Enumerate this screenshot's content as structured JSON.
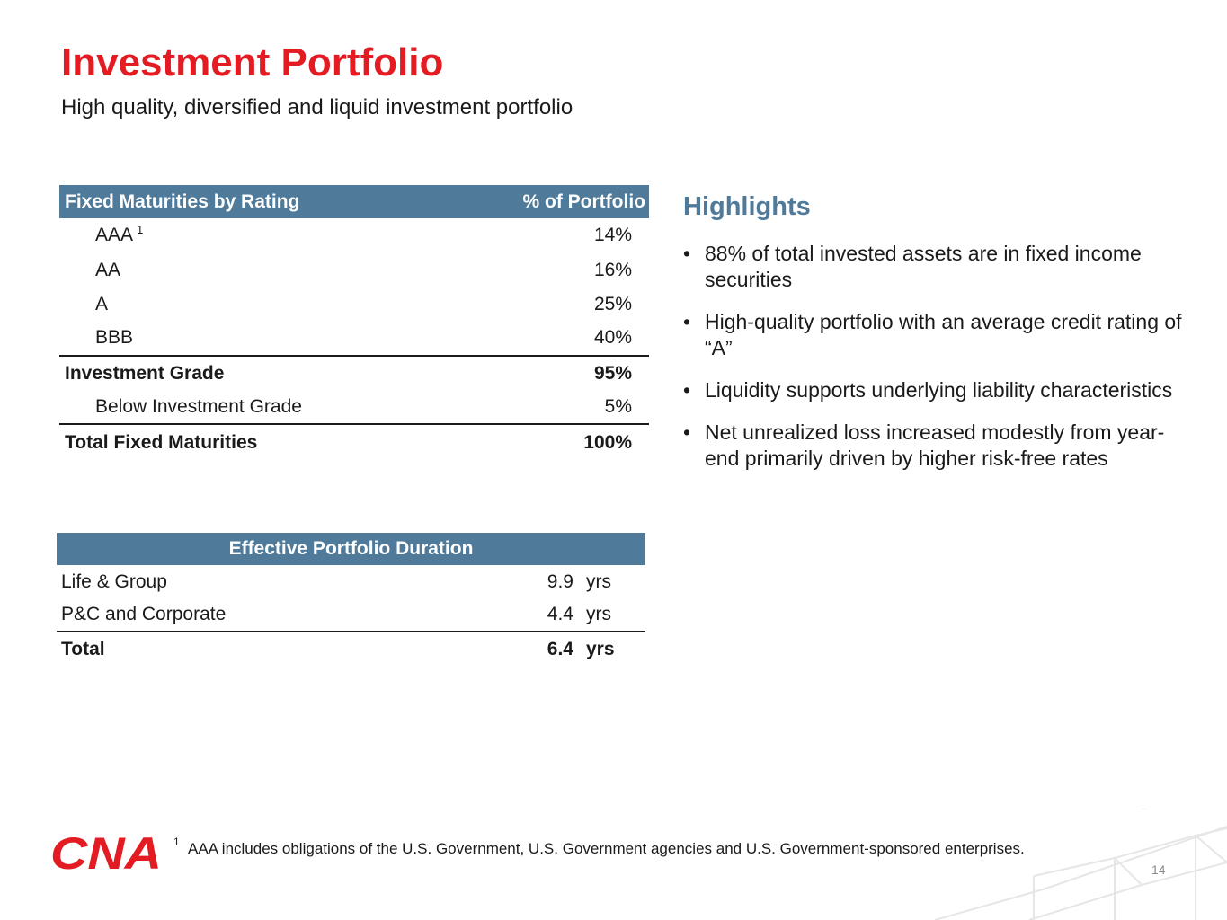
{
  "header": {
    "title": "Investment Portfolio",
    "subtitle": "High quality, diversified and liquid investment portfolio"
  },
  "fixed_maturities": {
    "col_label": "Fixed Maturities by Rating",
    "col_value": "% of Portfolio",
    "rows": [
      {
        "label": "AAA",
        "sup": "1",
        "value": "14%"
      },
      {
        "label": "AA",
        "value": "16%"
      },
      {
        "label": "A",
        "value": "25%"
      },
      {
        "label": "BBB",
        "value": "40%"
      },
      {
        "label": "Investment Grade",
        "value": "95%"
      },
      {
        "label": "Below Investment Grade",
        "value": "5%"
      },
      {
        "label": "Total Fixed Maturities",
        "value": "100%"
      }
    ]
  },
  "duration": {
    "header": "Effective Portfolio Duration",
    "rows": [
      {
        "label": "Life & Group",
        "value": "9.9",
        "unit": "yrs"
      },
      {
        "label": "P&C and Corporate",
        "value": "4.4",
        "unit": "yrs"
      },
      {
        "label": "Total",
        "value": "6.4",
        "unit": "yrs"
      }
    ]
  },
  "highlights": {
    "title": "Highlights",
    "bullet": "•",
    "items": [
      "88% of total invested assets are in fixed income securities",
      "High-quality portfolio with an average credit rating of “A”",
      "Liquidity supports underlying liability characteristics",
      "Net unrealized loss increased modestly from year-end primarily driven by higher risk-free rates"
    ]
  },
  "footer": {
    "logo_text": "CNA",
    "footnote_marker": "1",
    "footnote": "AAA includes obligations of the U.S. Government, U.S. Government agencies and U.S. Government-sponsored enterprises.",
    "page_number": "14"
  },
  "colors": {
    "title_red": "#e31b23",
    "header_blue": "#4f7a99",
    "logo_red": "#e31b23"
  }
}
